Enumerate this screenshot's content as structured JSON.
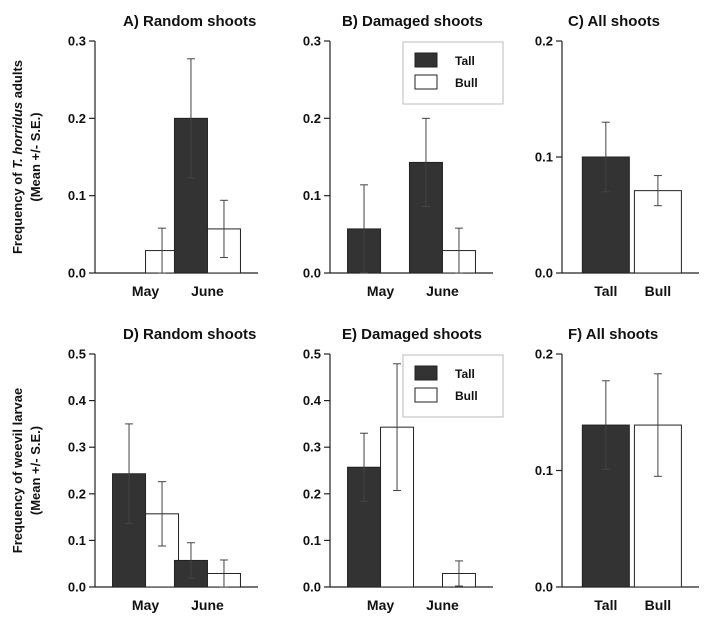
{
  "colors": {
    "tall": "#333333",
    "bull": "#ffffff",
    "outline": "#222222"
  },
  "y_axis_labels": [
    {
      "line1_prefix": "Frequency of ",
      "line1_italic": "T. horridus",
      "line1_suffix": " adults",
      "line2": "(Mean +/- S.E.)"
    },
    {
      "line1_prefix": "Frequency of weevil larvae",
      "line1_italic": "",
      "line1_suffix": "",
      "line2": "(Mean +/- S.E.)"
    }
  ],
  "chart_data": [
    {
      "type": "bar",
      "title": "A) Random shoots",
      "categories": [
        "May",
        "June"
      ],
      "ylim": [
        0,
        0.3
      ],
      "yticks": [
        "0.0",
        "0.1",
        "0.2",
        "0.3"
      ],
      "series": [
        {
          "name": "Tall",
          "values": [
            0,
            0.2
          ],
          "errors": [
            0,
            0.077
          ]
        },
        {
          "name": "Bull",
          "values": [
            0.029,
            0.057
          ],
          "errors": [
            0.029,
            0.037
          ]
        }
      ],
      "legend": null
    },
    {
      "type": "bar",
      "title": "B) Damaged shoots",
      "categories": [
        "May",
        "June"
      ],
      "ylim": [
        0,
        0.3
      ],
      "yticks": [
        "0.0",
        "0.1",
        "0.2",
        "0.3"
      ],
      "series": [
        {
          "name": "Tall",
          "values": [
            0.057,
            0.143
          ],
          "errors": [
            0.057,
            0.057
          ]
        },
        {
          "name": "Bull",
          "values": [
            0,
            0.029
          ],
          "errors": [
            0,
            0.029
          ]
        }
      ],
      "legend": "top-right"
    },
    {
      "type": "bar",
      "title": "C) All shoots",
      "categories": [
        "Tall",
        "Bull"
      ],
      "ylim": [
        0,
        0.2
      ],
      "yticks": [
        "0.0",
        "0.1",
        "0.2"
      ],
      "values": [
        0.1,
        0.071
      ],
      "errors": [
        0.03,
        0.013
      ],
      "legend": null
    },
    {
      "type": "bar",
      "title": "D) Random shoots",
      "categories": [
        "May",
        "June"
      ],
      "ylim": [
        0,
        0.5
      ],
      "yticks": [
        "0.0",
        "0.1",
        "0.2",
        "0.3",
        "0.4",
        "0.5"
      ],
      "series": [
        {
          "name": "Tall",
          "values": [
            0.243,
            0.057
          ],
          "errors": [
            0.107,
            0.038
          ]
        },
        {
          "name": "Bull",
          "values": [
            0.157,
            0.029
          ],
          "errors": [
            0.069,
            0.029
          ]
        }
      ],
      "legend": null
    },
    {
      "type": "bar",
      "title": "E) Damaged shoots",
      "categories": [
        "May",
        "June"
      ],
      "ylim": [
        0,
        0.5
      ],
      "yticks": [
        "0.0",
        "0.1",
        "0.2",
        "0.3",
        "0.4",
        "0.5"
      ],
      "series": [
        {
          "name": "Tall",
          "values": [
            0.257,
            0
          ],
          "errors": [
            0.073,
            0
          ]
        },
        {
          "name": "Bull",
          "values": [
            0.343,
            0.029
          ],
          "errors": [
            0.136,
            0.027
          ]
        }
      ],
      "legend": "top-right"
    },
    {
      "type": "bar",
      "title": "F) All shoots",
      "categories": [
        "Tall",
        "Bull"
      ],
      "ylim": [
        0,
        0.2
      ],
      "yticks": [
        "0.0",
        "0.1",
        "0.2"
      ],
      "values": [
        0.139,
        0.139
      ],
      "errors": [
        0.038,
        0.044
      ],
      "legend": null
    }
  ]
}
